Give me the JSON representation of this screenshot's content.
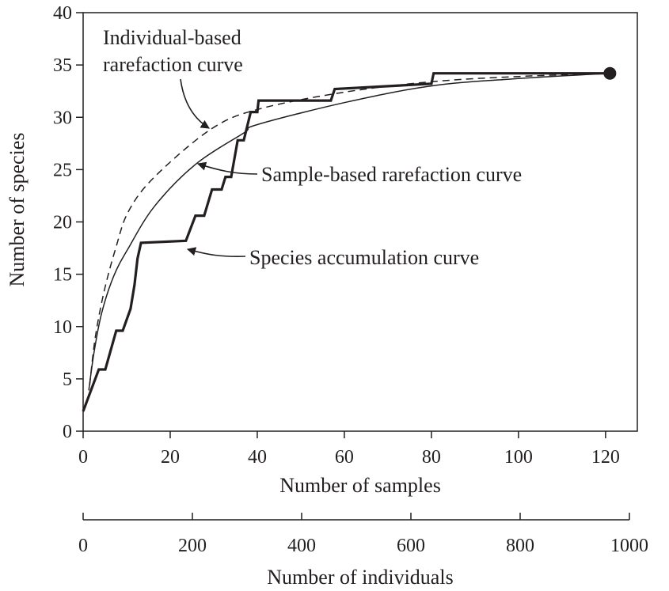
{
  "chart_data": {
    "type": "line",
    "xlabel": "Number of samples",
    "ylabel": "Number of species",
    "secondary_xlabel": "Number of individuals",
    "xlim": [
      0,
      127.3
    ],
    "ylim": [
      0,
      40
    ],
    "secondary_xlim": [
      0,
      1000
    ],
    "x_ticks": [
      "0",
      "20",
      "40",
      "60",
      "80",
      "100",
      "120"
    ],
    "y_ticks": [
      "0",
      "5",
      "10",
      "15",
      "20",
      "25",
      "30",
      "35",
      "40"
    ],
    "secondary_x_ticks": [
      "0",
      "200",
      "400",
      "600",
      "800",
      "1000"
    ],
    "grid": false,
    "series": [
      {
        "name": "Species accumulation curve",
        "style": "thick-step",
        "x": [
          0,
          3.6,
          5.1,
          7.6,
          9.1,
          10.9,
          11.8,
          12.5,
          13.3,
          23.6,
          25.8,
          27.8,
          29.6,
          31.8,
          32.7,
          34.0,
          35.5,
          36.9,
          38.5,
          40.0,
          40.3,
          56.9,
          57.8,
          80.0,
          80.5,
          121
        ],
        "y": [
          1.9,
          5.9,
          5.9,
          9.6,
          9.6,
          11.7,
          14.0,
          16.5,
          18.0,
          18.2,
          20.6,
          20.6,
          23.1,
          23.1,
          24.3,
          24.3,
          27.8,
          27.8,
          30.5,
          30.5,
          31.6,
          31.6,
          32.7,
          33.2,
          34.2,
          34.2
        ]
      },
      {
        "name": "Sample-based rarefaction curve",
        "style": "solid",
        "x": [
          1.3,
          2.5,
          4.2,
          7,
          10.4,
          16.4,
          25.8,
          36.9,
          40,
          60,
          80,
          100,
          121
        ],
        "y": [
          3.9,
          7.5,
          11.2,
          14.8,
          17.5,
          21.5,
          25.5,
          28.5,
          29.3,
          31.4,
          33.0,
          33.7,
          34.2
        ]
      },
      {
        "name": "Individual-based rarefaction curve",
        "style": "dashed",
        "x": [
          1.5,
          2.8,
          4.9,
          7.5,
          10.4,
          16.4,
          29.5,
          40.5,
          60,
          80,
          100,
          121
        ],
        "y": [
          4.4,
          9.0,
          13.5,
          17.5,
          21.0,
          24.3,
          28.9,
          30.8,
          32.4,
          33.4,
          33.9,
          34.2
        ]
      }
    ],
    "endpoint": {
      "x": 121,
      "y": 34.2
    },
    "annotations": {
      "individual_line1": "Individual-based",
      "individual_line2": "rarefaction curve",
      "sample": "Sample-based rarefaction curve",
      "accumulation": "Species accumulation curve"
    },
    "colors": {
      "ink": "#231f20"
    }
  }
}
